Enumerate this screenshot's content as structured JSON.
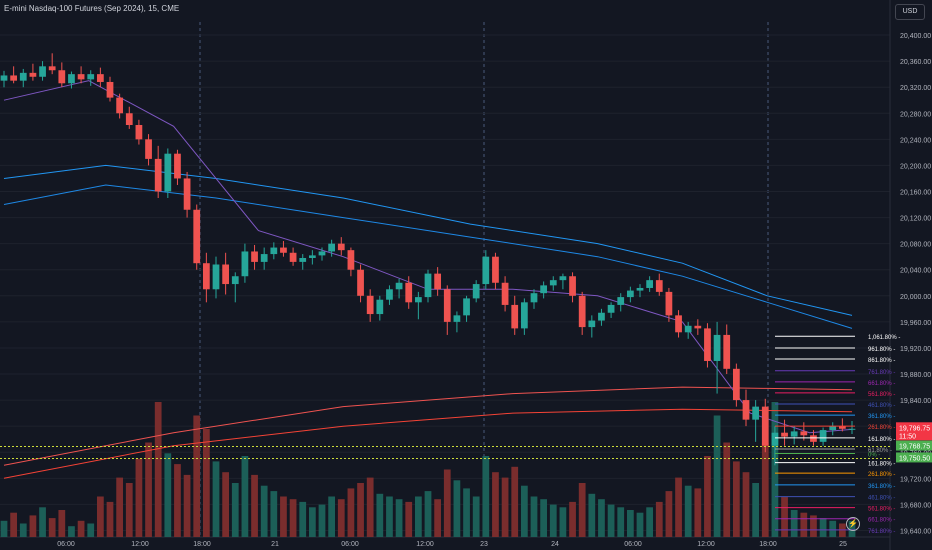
{
  "header": {
    "symbol_title": "E-mini Nasdaq-100 Futures (Sep 2024), 15, CME",
    "currency_button": "USD"
  },
  "chart_data": {
    "type": "candlestick",
    "price_axis": {
      "ticks": [
        "20,400.00",
        "20,360.00",
        "20,320.00",
        "20,280.00",
        "20,240.00",
        "20,200.00",
        "20,160.00",
        "20,120.00",
        "20,080.00",
        "20,040.00",
        "20,000.00",
        "19,960.00",
        "19,920.00",
        "19,880.00",
        "19,840.00",
        "19,800.00",
        "19,760.00",
        "19,720.00",
        "19,680.00",
        "19,640.00"
      ],
      "ylim": [
        19630,
        20420
      ]
    },
    "time_axis": {
      "ticks": [
        "06:00",
        "12:00",
        "18:00",
        "21",
        "06:00",
        "12:00",
        "23",
        "24",
        "06:00",
        "12:00",
        "18:00",
        "25"
      ]
    },
    "price_labels": [
      {
        "value": "19,796.75",
        "extra": "11:50",
        "color": "#f23645"
      },
      {
        "value": "19,768.75",
        "color": "#4caf50"
      },
      {
        "value": "19,750.50",
        "color": "#4caf50"
      }
    ],
    "fib_levels": [
      {
        "label": "1,061.80%",
        "price": 19938,
        "color": "#ffffff"
      },
      {
        "label": "961.80%",
        "price": 19920,
        "color": "#ffffff"
      },
      {
        "label": "861.80%",
        "price": 19903,
        "color": "#ffffff"
      },
      {
        "label": "761.80%",
        "price": 19885,
        "color": "#673ab7"
      },
      {
        "label": "661.80%",
        "price": 19868,
        "color": "#9c27b0"
      },
      {
        "label": "561.80%",
        "price": 19851,
        "color": "#e91e63"
      },
      {
        "label": "461.80%",
        "price": 19834,
        "color": "#3f51b5"
      },
      {
        "label": "361.80%",
        "price": 19817,
        "color": "#2196f3"
      },
      {
        "label": "261.80%",
        "price": 19800,
        "color": "#f44336"
      },
      {
        "label": "161.80%",
        "price": 19782,
        "color": "#ffffff"
      },
      {
        "label": "61.80%",
        "price": 19765,
        "color": "#9e9e9e"
      },
      {
        "label": "0%",
        "price": 19758,
        "color": "#4caf50"
      },
      {
        "label": "161.80%",
        "price": 19744,
        "color": "#ffffff"
      },
      {
        "label": "261.80%",
        "price": 19728,
        "color": "#ff9800"
      },
      {
        "label": "361.80%",
        "price": 19710,
        "color": "#2196f3"
      },
      {
        "label": "461.80%",
        "price": 19692,
        "color": "#3f51b5"
      },
      {
        "label": "561.80%",
        "price": 19675,
        "color": "#e91e63"
      },
      {
        "label": "661.80%",
        "price": 19658,
        "color": "#9c27b0"
      },
      {
        "label": "761.80%",
        "price": 19641,
        "color": "#673ab7"
      }
    ],
    "colors": {
      "up": "#26a69a",
      "down": "#ef5350",
      "background": "#131722",
      "grid": "#1e222d"
    },
    "candles": [
      [
        20330,
        20345,
        20320,
        20338
      ],
      [
        20338,
        20352,
        20326,
        20330
      ],
      [
        20330,
        20348,
        20320,
        20342
      ],
      [
        20342,
        20356,
        20330,
        20336
      ],
      [
        20336,
        20360,
        20330,
        20352
      ],
      [
        20352,
        20372,
        20340,
        20346
      ],
      [
        20346,
        20358,
        20320,
        20326
      ],
      [
        20326,
        20344,
        20318,
        20340
      ],
      [
        20340,
        20352,
        20326,
        20332
      ],
      [
        20332,
        20346,
        20322,
        20340
      ],
      [
        20340,
        20350,
        20320,
        20328
      ],
      [
        20328,
        20336,
        20298,
        20304
      ],
      [
        20304,
        20310,
        20272,
        20280
      ],
      [
        20280,
        20290,
        20256,
        20262
      ],
      [
        20262,
        20270,
        20232,
        20240
      ],
      [
        20240,
        20248,
        20200,
        20210
      ],
      [
        20210,
        20230,
        20150,
        20160
      ],
      [
        20160,
        20226,
        20150,
        20218
      ],
      [
        20218,
        20224,
        20170,
        20180
      ],
      [
        20180,
        20190,
        20120,
        20132
      ],
      [
        20132,
        20140,
        20040,
        20050
      ],
      [
        20050,
        20066,
        19990,
        20010
      ],
      [
        20010,
        20060,
        19996,
        20048
      ],
      [
        20048,
        20066,
        20002,
        20018
      ],
      [
        20018,
        20036,
        19990,
        20030
      ],
      [
        20030,
        20080,
        20020,
        20068
      ],
      [
        20068,
        20078,
        20040,
        20052
      ],
      [
        20052,
        20074,
        20040,
        20064
      ],
      [
        20064,
        20082,
        20056,
        20074
      ],
      [
        20074,
        20084,
        20060,
        20066
      ],
      [
        20066,
        20074,
        20046,
        20052
      ],
      [
        20052,
        20064,
        20040,
        20058
      ],
      [
        20058,
        20070,
        20048,
        20062
      ],
      [
        20062,
        20074,
        20054,
        20068
      ],
      [
        20068,
        20086,
        20060,
        20080
      ],
      [
        20080,
        20090,
        20062,
        20070
      ],
      [
        20070,
        20074,
        20030,
        20040
      ],
      [
        20040,
        20048,
        19990,
        20000
      ],
      [
        20000,
        20010,
        19960,
        19972
      ],
      [
        19972,
        20000,
        19962,
        19994
      ],
      [
        19994,
        20016,
        19986,
        20010
      ],
      [
        20010,
        20026,
        19996,
        20020
      ],
      [
        20020,
        20030,
        19980,
        19990
      ],
      [
        19990,
        20006,
        19964,
        19998
      ],
      [
        19998,
        20040,
        19990,
        20034
      ],
      [
        20034,
        20044,
        20000,
        20010
      ],
      [
        20010,
        20016,
        19940,
        19960
      ],
      [
        19960,
        19976,
        19944,
        19970
      ],
      [
        19970,
        20000,
        19960,
        19996
      ],
      [
        19996,
        20024,
        19990,
        20018
      ],
      [
        20018,
        20070,
        20010,
        20060
      ],
      [
        20060,
        20066,
        20010,
        20020
      ],
      [
        20020,
        20030,
        19976,
        19986
      ],
      [
        19986,
        20000,
        19940,
        19950
      ],
      [
        19950,
        19996,
        19940,
        19990
      ],
      [
        19990,
        20010,
        19980,
        20004
      ],
      [
        20004,
        20022,
        19996,
        20016
      ],
      [
        20016,
        20030,
        20008,
        20024
      ],
      [
        20024,
        20034,
        20010,
        20030
      ],
      [
        20030,
        20036,
        19990,
        20000
      ],
      [
        20000,
        20006,
        19940,
        19952
      ],
      [
        19952,
        19970,
        19936,
        19962
      ],
      [
        19962,
        19980,
        19954,
        19974
      ],
      [
        19974,
        19990,
        19966,
        19986
      ],
      [
        19986,
        20004,
        19976,
        19998
      ],
      [
        19998,
        20014,
        19990,
        20008
      ],
      [
        20008,
        20018,
        19998,
        20012
      ],
      [
        20012,
        20030,
        20006,
        20024
      ],
      [
        20024,
        20034,
        20000,
        20006
      ],
      [
        20006,
        20012,
        19960,
        19970
      ],
      [
        19970,
        19978,
        19936,
        19944
      ],
      [
        19944,
        19960,
        19934,
        19954
      ],
      [
        19954,
        19964,
        19940,
        19950
      ],
      [
        19950,
        19958,
        19890,
        19900
      ],
      [
        19900,
        19960,
        19850,
        19940
      ],
      [
        19940,
        19956,
        19880,
        19888
      ],
      [
        19888,
        19896,
        19830,
        19840
      ],
      [
        19840,
        19856,
        19800,
        19810
      ],
      [
        19810,
        19840,
        19776,
        19830
      ],
      [
        19830,
        19842,
        19760,
        19770
      ],
      [
        19770,
        19800,
        19740,
        19790
      ],
      [
        19790,
        19810,
        19770,
        19784
      ],
      [
        19784,
        19800,
        19772,
        19792
      ],
      [
        19792,
        19806,
        19778,
        19786
      ],
      [
        19786,
        19794,
        19770,
        19776
      ],
      [
        19776,
        19798,
        19770,
        19794
      ],
      [
        19794,
        19806,
        19786,
        19800
      ],
      [
        19800,
        19812,
        19792,
        19796
      ],
      [
        19796,
        19808,
        19788,
        19796
      ]
    ],
    "volume": [
      12,
      18,
      10,
      16,
      22,
      14,
      20,
      8,
      12,
      10,
      30,
      26,
      44,
      40,
      58,
      70,
      100,
      62,
      54,
      46,
      90,
      80,
      56,
      48,
      40,
      60,
      46,
      38,
      34,
      30,
      28,
      26,
      22,
      24,
      30,
      28,
      36,
      40,
      44,
      32,
      30,
      28,
      26,
      30,
      34,
      28,
      50,
      42,
      36,
      30,
      60,
      48,
      44,
      52,
      38,
      30,
      28,
      24,
      22,
      26,
      40,
      32,
      28,
      24,
      22,
      20,
      18,
      22,
      26,
      34,
      44,
      38,
      36,
      60,
      90,
      70,
      56,
      48,
      40,
      70,
      100,
      30,
      20,
      18,
      16,
      14,
      12,
      10,
      12
    ],
    "moving_averages": [
      {
        "name": "",
        "color": "#2196f3",
        "points": [
          [
            0,
            20180
          ],
          [
            0.12,
            20200
          ],
          [
            0.25,
            20180
          ],
          [
            0.4,
            20150
          ],
          [
            0.55,
            20110
          ],
          [
            0.7,
            20080
          ],
          [
            0.8,
            20050
          ],
          [
            0.9,
            20000
          ],
          [
            1,
            19970
          ]
        ]
      },
      {
        "name": "",
        "color": "#1e88e5",
        "points": [
          [
            0,
            20140
          ],
          [
            0.12,
            20170
          ],
          [
            0.25,
            20150
          ],
          [
            0.4,
            20120
          ],
          [
            0.55,
            20090
          ],
          [
            0.7,
            20060
          ],
          [
            0.8,
            20030
          ],
          [
            0.9,
            19990
          ],
          [
            1,
            19950
          ]
        ]
      },
      {
        "name": "",
        "color": "#ef5350",
        "points": [
          [
            0,
            19740
          ],
          [
            0.2,
            19790
          ],
          [
            0.4,
            19830
          ],
          [
            0.6,
            19850
          ],
          [
            0.8,
            19860
          ],
          [
            0.9,
            19858
          ],
          [
            1,
            19856
          ]
        ]
      },
      {
        "name": "",
        "color": "#f44336",
        "points": [
          [
            0,
            19720
          ],
          [
            0.2,
            19770
          ],
          [
            0.4,
            19800
          ],
          [
            0.6,
            19820
          ],
          [
            0.8,
            19826
          ],
          [
            0.9,
            19824
          ],
          [
            1,
            19822
          ]
        ]
      },
      {
        "name": "",
        "color": "#7e57c2",
        "points": [
          [
            0,
            20300
          ],
          [
            0.1,
            20330
          ],
          [
            0.2,
            20260
          ],
          [
            0.3,
            20100
          ],
          [
            0.4,
            20060
          ],
          [
            0.5,
            20010
          ],
          [
            0.6,
            20010
          ],
          [
            0.7,
            20000
          ],
          [
            0.8,
            19960
          ],
          [
            0.88,
            19820
          ],
          [
            0.95,
            19790
          ],
          [
            1,
            19795
          ]
        ]
      }
    ]
  }
}
